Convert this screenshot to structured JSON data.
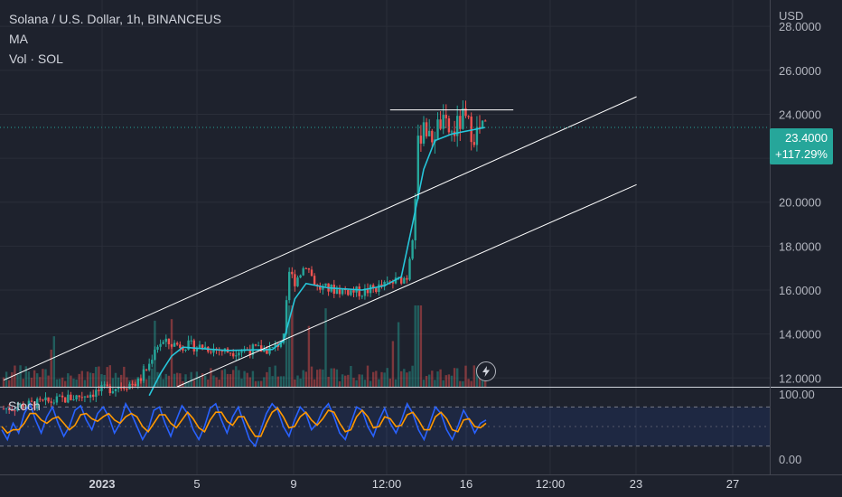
{
  "legend": {
    "symbol": "Solana / U.S. Dollar, 1h, BINANCEUS",
    "ma_label": "MA",
    "vol_label": "Vol · SOL"
  },
  "stoch_label": "Stoch",
  "price_badge": {
    "price": "23.4000",
    "change": "+117.29%"
  },
  "colors": {
    "background": "#1e222d",
    "up": "#26a69a",
    "down": "#ef5350",
    "ma": "#26c6da",
    "stoch_k": "#2962ff",
    "stoch_d": "#ff9800",
    "channel": "#ffffff"
  },
  "chart_data": {
    "type": "line",
    "currency": "USD",
    "y_ticks": [
      "28.0000",
      "26.0000",
      "24.0000",
      "22.0000",
      "20.0000",
      "18.0000",
      "16.0000",
      "14.0000",
      "12.0000"
    ],
    "x_ticks": [
      "2023",
      "5",
      "9",
      "12:00",
      "16",
      "12:00",
      "23",
      "27"
    ],
    "stoch_ticks": [
      "100.00",
      "0.00"
    ],
    "ylim": [
      11.6,
      29.2
    ],
    "close_series": [
      {
        "x": 0.0,
        "y": 10.6
      },
      {
        "x": 8.0,
        "y": 10.9
      },
      {
        "x": 14.0,
        "y": 11.2
      },
      {
        "x": 20.0,
        "y": 11.6
      },
      {
        "x": 24.0,
        "y": 11.8
      },
      {
        "x": 26.0,
        "y": 12.6
      },
      {
        "x": 27.0,
        "y": 13.4
      },
      {
        "x": 28.0,
        "y": 13.6
      },
      {
        "x": 32.0,
        "y": 13.5
      },
      {
        "x": 36.0,
        "y": 13.4
      },
      {
        "x": 40.0,
        "y": 13.2
      },
      {
        "x": 44.0,
        "y": 13.3
      },
      {
        "x": 48.0,
        "y": 13.3
      },
      {
        "x": 50.0,
        "y": 13.8
      },
      {
        "x": 51.0,
        "y": 16.8
      },
      {
        "x": 52.0,
        "y": 16.4
      },
      {
        "x": 54.0,
        "y": 17.2
      },
      {
        "x": 56.0,
        "y": 16.1
      },
      {
        "x": 60.0,
        "y": 16.0
      },
      {
        "x": 64.0,
        "y": 15.9
      },
      {
        "x": 68.0,
        "y": 16.2
      },
      {
        "x": 72.0,
        "y": 16.6
      },
      {
        "x": 73.0,
        "y": 18.5
      },
      {
        "x": 74.0,
        "y": 22.5
      },
      {
        "x": 75.0,
        "y": 23.8
      },
      {
        "x": 76.0,
        "y": 22.8
      },
      {
        "x": 78.0,
        "y": 23.6
      },
      {
        "x": 80.0,
        "y": 23.1
      },
      {
        "x": 82.0,
        "y": 23.8
      },
      {
        "x": 84.0,
        "y": 23.1
      },
      {
        "x": 86.0,
        "y": 23.4
      }
    ],
    "ma_series": [
      {
        "x": 26.0,
        "y": 11.2
      },
      {
        "x": 28.0,
        "y": 12.2
      },
      {
        "x": 30.0,
        "y": 13.0
      },
      {
        "x": 32.0,
        "y": 13.4
      },
      {
        "x": 40.0,
        "y": 13.25
      },
      {
        "x": 48.0,
        "y": 13.3
      },
      {
        "x": 50.0,
        "y": 13.7
      },
      {
        "x": 52.0,
        "y": 15.6
      },
      {
        "x": 54.0,
        "y": 16.3
      },
      {
        "x": 58.0,
        "y": 16.1
      },
      {
        "x": 64.0,
        "y": 16.0
      },
      {
        "x": 68.0,
        "y": 16.2
      },
      {
        "x": 71.0,
        "y": 16.6
      },
      {
        "x": 73.0,
        "y": 19.0
      },
      {
        "x": 75.0,
        "y": 21.5
      },
      {
        "x": 77.0,
        "y": 22.8
      },
      {
        "x": 80.0,
        "y": 23.1
      },
      {
        "x": 86.0,
        "y": 23.4
      }
    ],
    "trendlines": [
      {
        "name": "upper-channel",
        "x1": 0.0,
        "y1": 11.9,
        "x2": 113.0,
        "y2": 24.8
      },
      {
        "name": "lower-channel",
        "x1": 31.0,
        "y1": 11.6,
        "x2": 113.0,
        "y2": 20.8
      },
      {
        "name": "resistance",
        "x1": 69.0,
        "y1": 24.2,
        "x2": 91.0,
        "y2": 24.2
      }
    ],
    "current_price": 23.4,
    "stoch_k": [
      45,
      30,
      55,
      40,
      70,
      85,
      60,
      40,
      65,
      80,
      55,
      35,
      50,
      75,
      82,
      60,
      45,
      70,
      80,
      65,
      40,
      55,
      85,
      70,
      50,
      30,
      45,
      75,
      80,
      55,
      35,
      60,
      82,
      70,
      45,
      30,
      50,
      78,
      85,
      60,
      40,
      65,
      80,
      55,
      30,
      20,
      45,
      70,
      85,
      75,
      50,
      35,
      60,
      80,
      70,
      45,
      55,
      75,
      85,
      65,
      40,
      30,
      55,
      80,
      75,
      50,
      35,
      60,
      78,
      55,
      40,
      60,
      85,
      70,
      45,
      30,
      55,
      80,
      70,
      45,
      30,
      50,
      75,
      60,
      40,
      55,
      60
    ],
    "stoch_d": [
      50,
      40,
      45,
      45,
      55,
      70,
      70,
      60,
      55,
      62,
      65,
      55,
      45,
      52,
      68,
      70,
      62,
      58,
      65,
      70,
      60,
      55,
      65,
      70,
      65,
      50,
      42,
      55,
      68,
      68,
      55,
      48,
      60,
      72,
      62,
      48,
      42,
      60,
      72,
      72,
      58,
      52,
      65,
      65,
      48,
      35,
      35,
      55,
      72,
      78,
      65,
      48,
      50,
      65,
      72,
      60,
      52,
      62,
      75,
      72,
      55,
      42,
      45,
      65,
      75,
      65,
      48,
      50,
      65,
      62,
      50,
      52,
      68,
      72,
      60,
      45,
      45,
      65,
      72,
      62,
      45,
      42,
      60,
      62,
      50,
      48,
      55
    ],
    "stoch_band": [
      20,
      80
    ],
    "grid": true,
    "legend_position": "top-left"
  }
}
